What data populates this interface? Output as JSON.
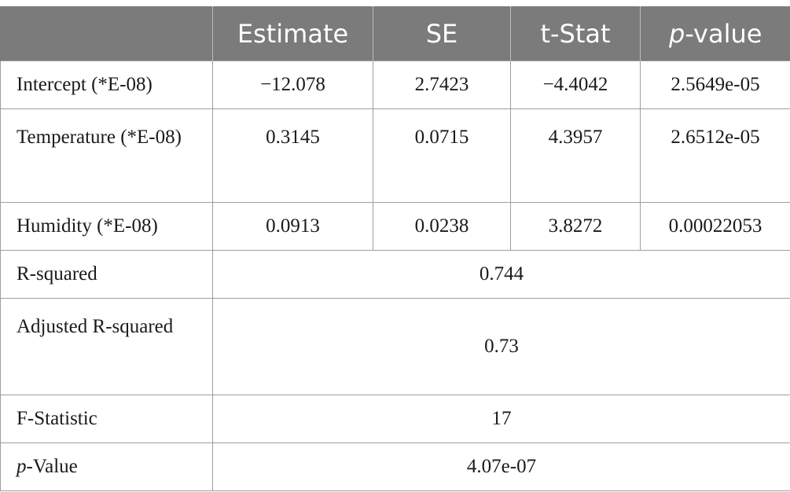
{
  "headers": {
    "blank": "",
    "estimate": "Estimate",
    "se": "SE",
    "tstat": "t-Stat",
    "pvalue_prefix": "p",
    "pvalue_suffix": "-value"
  },
  "rows": [
    {
      "label": "Intercept (*E-08)",
      "estimate": "−12.078",
      "se": "2.7423",
      "tstat": "−4.4042",
      "pvalue": "2.5649e-05"
    },
    {
      "label": "Temperature (*E-08)",
      "estimate": "0.3145",
      "se": "0.0715",
      "tstat": "4.3957",
      "pvalue": "2.6512e-05"
    },
    {
      "label": "Humidity (*E-08)",
      "estimate": "0.0913",
      "se": "0.0238",
      "tstat": "3.8272",
      "pvalue": "0.00022053"
    }
  ],
  "summary": {
    "r_squared": {
      "label": "R-squared",
      "value": "0.744"
    },
    "adj_r_squared": {
      "label": "Adjusted R-squared",
      "value": "0.73"
    },
    "f_statistic": {
      "label": "F-Statistic",
      "value": "17"
    },
    "p_value": {
      "label_prefix": "p",
      "label_suffix": "-Value",
      "value": "4.07e-07"
    }
  }
}
